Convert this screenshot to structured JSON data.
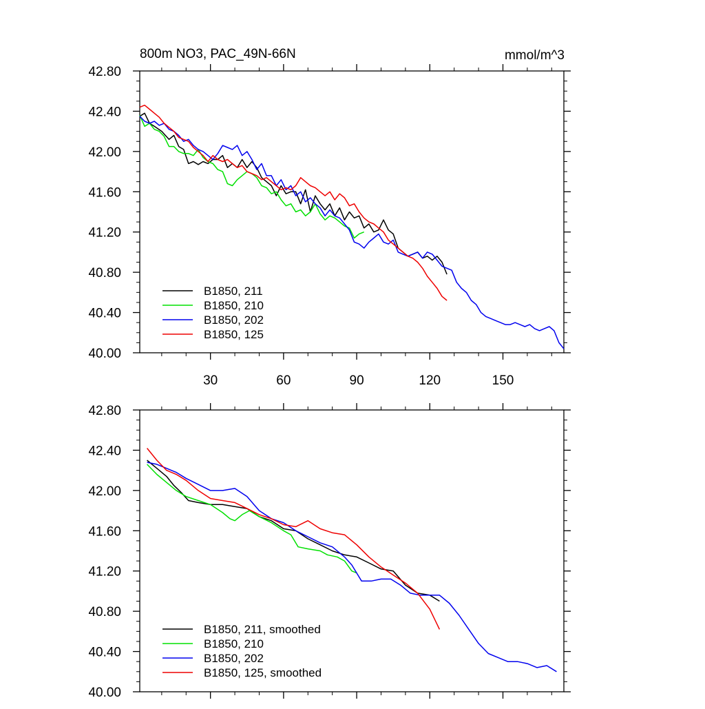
{
  "chart_data": [
    {
      "type": "line",
      "title_left": "800m NO3, PAC_49N-66N",
      "title_right": "mmol/m^3",
      "xlim": [
        1,
        175
      ],
      "ylim": [
        40.0,
        42.8
      ],
      "x_ticks": [
        30,
        60,
        90,
        120,
        150
      ],
      "x_tick_labels": [
        "30",
        "60",
        "90",
        "120",
        "150"
      ],
      "x_minor_ticks": [
        10,
        20,
        40,
        50,
        70,
        80,
        100,
        110,
        130,
        140,
        160,
        170
      ],
      "y_ticks": [
        40.0,
        40.4,
        40.8,
        41.2,
        41.6,
        42.0,
        42.4,
        42.8
      ],
      "y_tick_labels": [
        "40.00",
        "40.40",
        "40.80",
        "41.20",
        "41.60",
        "42.00",
        "42.40",
        "42.80"
      ],
      "legend_position": "bottom-left",
      "colors": {
        "s211": "#000000",
        "s210": "#00e000",
        "s202": "#0000ee",
        "s125": "#ee0000"
      },
      "series": [
        {
          "name": "B1850, 211",
          "color": "#000000",
          "x": [
            1,
            3,
            5,
            7,
            10,
            13,
            15,
            17,
            19,
            21,
            23,
            25,
            27,
            29,
            31,
            33,
            35,
            37,
            39,
            41,
            43,
            45,
            47,
            49,
            51,
            53,
            55,
            57,
            59,
            61,
            63,
            65,
            67,
            69,
            71,
            73,
            75,
            77,
            79,
            81,
            83,
            85,
            87,
            89,
            91,
            93,
            95,
            97,
            99,
            101,
            103,
            105,
            107,
            109,
            111,
            113,
            115,
            117,
            119,
            121,
            123,
            125,
            127
          ],
          "y": [
            42.35,
            42.38,
            42.28,
            42.25,
            42.2,
            42.12,
            42.16,
            42.05,
            42.02,
            41.88,
            41.9,
            41.87,
            41.9,
            41.88,
            41.92,
            41.92,
            41.96,
            41.84,
            41.88,
            41.84,
            41.92,
            41.84,
            41.9,
            41.84,
            41.74,
            41.7,
            41.66,
            41.56,
            41.66,
            41.58,
            41.6,
            41.6,
            41.48,
            41.62,
            41.4,
            41.56,
            41.48,
            41.42,
            41.48,
            41.36,
            41.44,
            41.32,
            41.4,
            41.34,
            41.36,
            41.24,
            41.28,
            41.2,
            41.22,
            41.32,
            41.22,
            41.18,
            41.04,
            41.0,
            40.96,
            40.98,
            41.0,
            40.94,
            40.96,
            40.92,
            40.96,
            40.9,
            40.78
          ]
        },
        {
          "name": "B1850, 210",
          "color": "#00e000",
          "x": [
            1,
            3,
            5,
            7,
            9,
            11,
            13,
            15,
            17,
            19,
            21,
            23,
            25,
            27,
            29,
            31,
            33,
            35,
            37,
            39,
            41,
            43,
            45,
            47,
            49,
            51,
            53,
            55,
            57,
            59,
            61,
            63,
            65,
            67,
            69,
            71,
            73,
            75,
            77,
            79,
            81,
            83,
            85,
            87,
            89,
            91,
            93
          ],
          "y": [
            42.36,
            42.25,
            42.28,
            42.22,
            42.2,
            42.15,
            42.05,
            42.05,
            42.0,
            41.98,
            41.98,
            41.96,
            42.02,
            41.94,
            41.9,
            41.88,
            41.82,
            41.8,
            41.68,
            41.66,
            41.72,
            41.76,
            41.8,
            41.78,
            41.74,
            41.66,
            41.64,
            41.58,
            41.6,
            41.52,
            41.46,
            41.48,
            41.4,
            41.42,
            41.36,
            41.4,
            41.48,
            41.38,
            41.32,
            41.36,
            41.34,
            41.3,
            41.26,
            41.24,
            41.14,
            41.18,
            41.2
          ]
        },
        {
          "name": "B1850, 202",
          "color": "#0000ee",
          "x": [
            1,
            3,
            5,
            7,
            9,
            11,
            13,
            15,
            17,
            19,
            21,
            23,
            25,
            27,
            29,
            31,
            33,
            35,
            37,
            39,
            41,
            43,
            45,
            47,
            49,
            51,
            53,
            55,
            57,
            59,
            61,
            63,
            65,
            67,
            69,
            71,
            73,
            75,
            77,
            79,
            81,
            83,
            85,
            87,
            89,
            91,
            93,
            95,
            97,
            99,
            101,
            103,
            105,
            107,
            109,
            111,
            113,
            115,
            117,
            119,
            121,
            123,
            125,
            127,
            129,
            131,
            133,
            135,
            137,
            139,
            141,
            143,
            145,
            147,
            149,
            151,
            153,
            155,
            157,
            159,
            161,
            163,
            165,
            167,
            169,
            171,
            173,
            175
          ],
          "y": [
            42.35,
            42.3,
            42.28,
            42.3,
            42.26,
            42.28,
            42.22,
            42.2,
            42.16,
            42.1,
            42.12,
            42.06,
            42.02,
            42.0,
            41.96,
            41.92,
            41.98,
            42.06,
            42.04,
            42.02,
            42.06,
            41.96,
            42.0,
            41.92,
            41.82,
            41.88,
            41.76,
            41.76,
            41.66,
            41.72,
            41.62,
            41.66,
            41.56,
            41.6,
            41.5,
            41.54,
            41.48,
            41.44,
            41.36,
            41.42,
            41.36,
            41.34,
            41.28,
            41.22,
            41.1,
            41.08,
            41.04,
            41.1,
            41.14,
            41.18,
            41.1,
            41.08,
            41.12,
            41.0,
            40.98,
            40.96,
            40.98,
            41.0,
            40.94,
            41.0,
            40.98,
            40.92,
            40.86,
            40.84,
            40.82,
            40.7,
            40.64,
            40.6,
            40.52,
            40.48,
            40.4,
            40.36,
            40.34,
            40.32,
            40.3,
            40.28,
            40.28,
            40.3,
            40.28,
            40.26,
            40.28,
            40.24,
            40.22,
            40.24,
            40.26,
            40.22,
            40.1,
            40.04
          ]
        },
        {
          "name": "B1850, 125",
          "color": "#ee0000",
          "x": [
            1,
            3,
            5,
            7,
            9,
            11,
            13,
            15,
            17,
            19,
            21,
            23,
            25,
            27,
            29,
            31,
            33,
            35,
            37,
            39,
            41,
            43,
            45,
            47,
            49,
            51,
            53,
            55,
            57,
            59,
            61,
            63,
            65,
            67,
            69,
            71,
            73,
            75,
            77,
            79,
            81,
            83,
            85,
            87,
            89,
            91,
            93,
            95,
            97,
            99,
            101,
            103,
            105,
            107,
            109,
            111,
            113,
            115,
            117,
            119,
            121,
            123,
            125,
            127
          ],
          "y": [
            42.44,
            42.46,
            42.42,
            42.38,
            42.34,
            42.28,
            42.24,
            42.2,
            42.14,
            42.12,
            42.1,
            42.04,
            42.0,
            41.96,
            41.9,
            41.96,
            41.92,
            41.9,
            41.92,
            41.88,
            41.84,
            41.86,
            41.8,
            41.78,
            41.76,
            41.72,
            41.74,
            41.7,
            41.66,
            41.62,
            41.64,
            41.62,
            41.66,
            41.74,
            41.7,
            41.66,
            41.64,
            41.6,
            41.56,
            41.6,
            41.52,
            41.58,
            41.54,
            41.46,
            41.48,
            41.4,
            41.34,
            41.3,
            41.28,
            41.24,
            41.2,
            41.12,
            41.08,
            41.04,
            41.0,
            40.96,
            40.94,
            40.9,
            40.84,
            40.76,
            40.7,
            40.64,
            40.56,
            40.52
          ]
        }
      ]
    },
    {
      "type": "line",
      "xlim": [
        1,
        175
      ],
      "ylim": [
        40.0,
        42.8
      ],
      "x_ticks": [
        30,
        60,
        90,
        120,
        150
      ],
      "x_minor_ticks": [
        10,
        20,
        40,
        50,
        70,
        80,
        100,
        110,
        130,
        140,
        160,
        170
      ],
      "y_ticks": [
        40.0,
        40.4,
        40.8,
        41.2,
        41.6,
        42.0,
        42.4,
        42.8
      ],
      "y_tick_labels": [
        "40.00",
        "40.40",
        "40.80",
        "41.20",
        "41.60",
        "42.00",
        "42.40",
        "42.80"
      ],
      "legend_position": "bottom-left",
      "series": [
        {
          "name": "B1850, 211, smoothed",
          "color": "#000000",
          "x": [
            4,
            8,
            12,
            15,
            18,
            21,
            25,
            30,
            35,
            40,
            45,
            50,
            55,
            60,
            65,
            70,
            75,
            80,
            85,
            90,
            95,
            100,
            105,
            110,
            115,
            120,
            124
          ],
          "y": [
            42.3,
            42.22,
            42.14,
            42.05,
            41.98,
            41.9,
            41.88,
            41.86,
            41.86,
            41.84,
            41.82,
            41.74,
            41.7,
            41.62,
            41.6,
            41.52,
            41.46,
            41.4,
            41.36,
            41.34,
            41.28,
            41.22,
            41.2,
            41.06,
            40.98,
            40.96,
            40.9
          ]
        },
        {
          "name": "B1850, 210",
          "color": "#00e000",
          "x": [
            4,
            8,
            12,
            16,
            20,
            25,
            30,
            35,
            38,
            40,
            43,
            46,
            50,
            55,
            60,
            63,
            66,
            70,
            75,
            78,
            82,
            85,
            88,
            90
          ],
          "y": [
            42.26,
            42.16,
            42.08,
            42.0,
            41.94,
            41.9,
            41.86,
            41.78,
            41.72,
            41.7,
            41.76,
            41.8,
            41.74,
            41.68,
            41.6,
            41.56,
            41.44,
            41.42,
            41.4,
            41.36,
            41.34,
            41.3,
            41.2,
            41.18
          ]
        },
        {
          "name": "B1850, 202",
          "color": "#0000ee",
          "x": [
            4,
            8,
            12,
            16,
            20,
            25,
            30,
            35,
            40,
            45,
            50,
            55,
            60,
            65,
            70,
            75,
            80,
            85,
            88,
            92,
            96,
            100,
            104,
            108,
            112,
            116,
            120,
            124,
            128,
            132,
            136,
            140,
            144,
            148,
            152,
            156,
            160,
            164,
            168,
            172
          ],
          "y": [
            42.28,
            42.26,
            42.22,
            42.18,
            42.12,
            42.06,
            42.0,
            42.0,
            42.02,
            41.94,
            41.8,
            41.72,
            41.68,
            41.6,
            41.54,
            41.48,
            41.44,
            41.34,
            41.26,
            41.1,
            41.1,
            41.12,
            41.12,
            41.06,
            40.98,
            40.96,
            40.96,
            40.96,
            40.88,
            40.76,
            40.62,
            40.48,
            40.38,
            40.34,
            40.3,
            40.3,
            40.28,
            40.24,
            40.26,
            40.2
          ]
        },
        {
          "name": "B1850, 125, smoothed",
          "color": "#ee0000",
          "x": [
            4,
            8,
            12,
            16,
            20,
            25,
            30,
            35,
            40,
            45,
            50,
            55,
            60,
            65,
            70,
            75,
            80,
            85,
            90,
            95,
            100,
            105,
            110,
            115,
            120,
            124
          ],
          "y": [
            42.42,
            42.3,
            42.2,
            42.16,
            42.1,
            42.0,
            41.92,
            41.9,
            41.88,
            41.82,
            41.76,
            41.72,
            41.66,
            41.64,
            41.7,
            41.62,
            41.58,
            41.56,
            41.46,
            41.34,
            41.24,
            41.16,
            41.08,
            40.98,
            40.82,
            40.62
          ]
        }
      ]
    }
  ]
}
